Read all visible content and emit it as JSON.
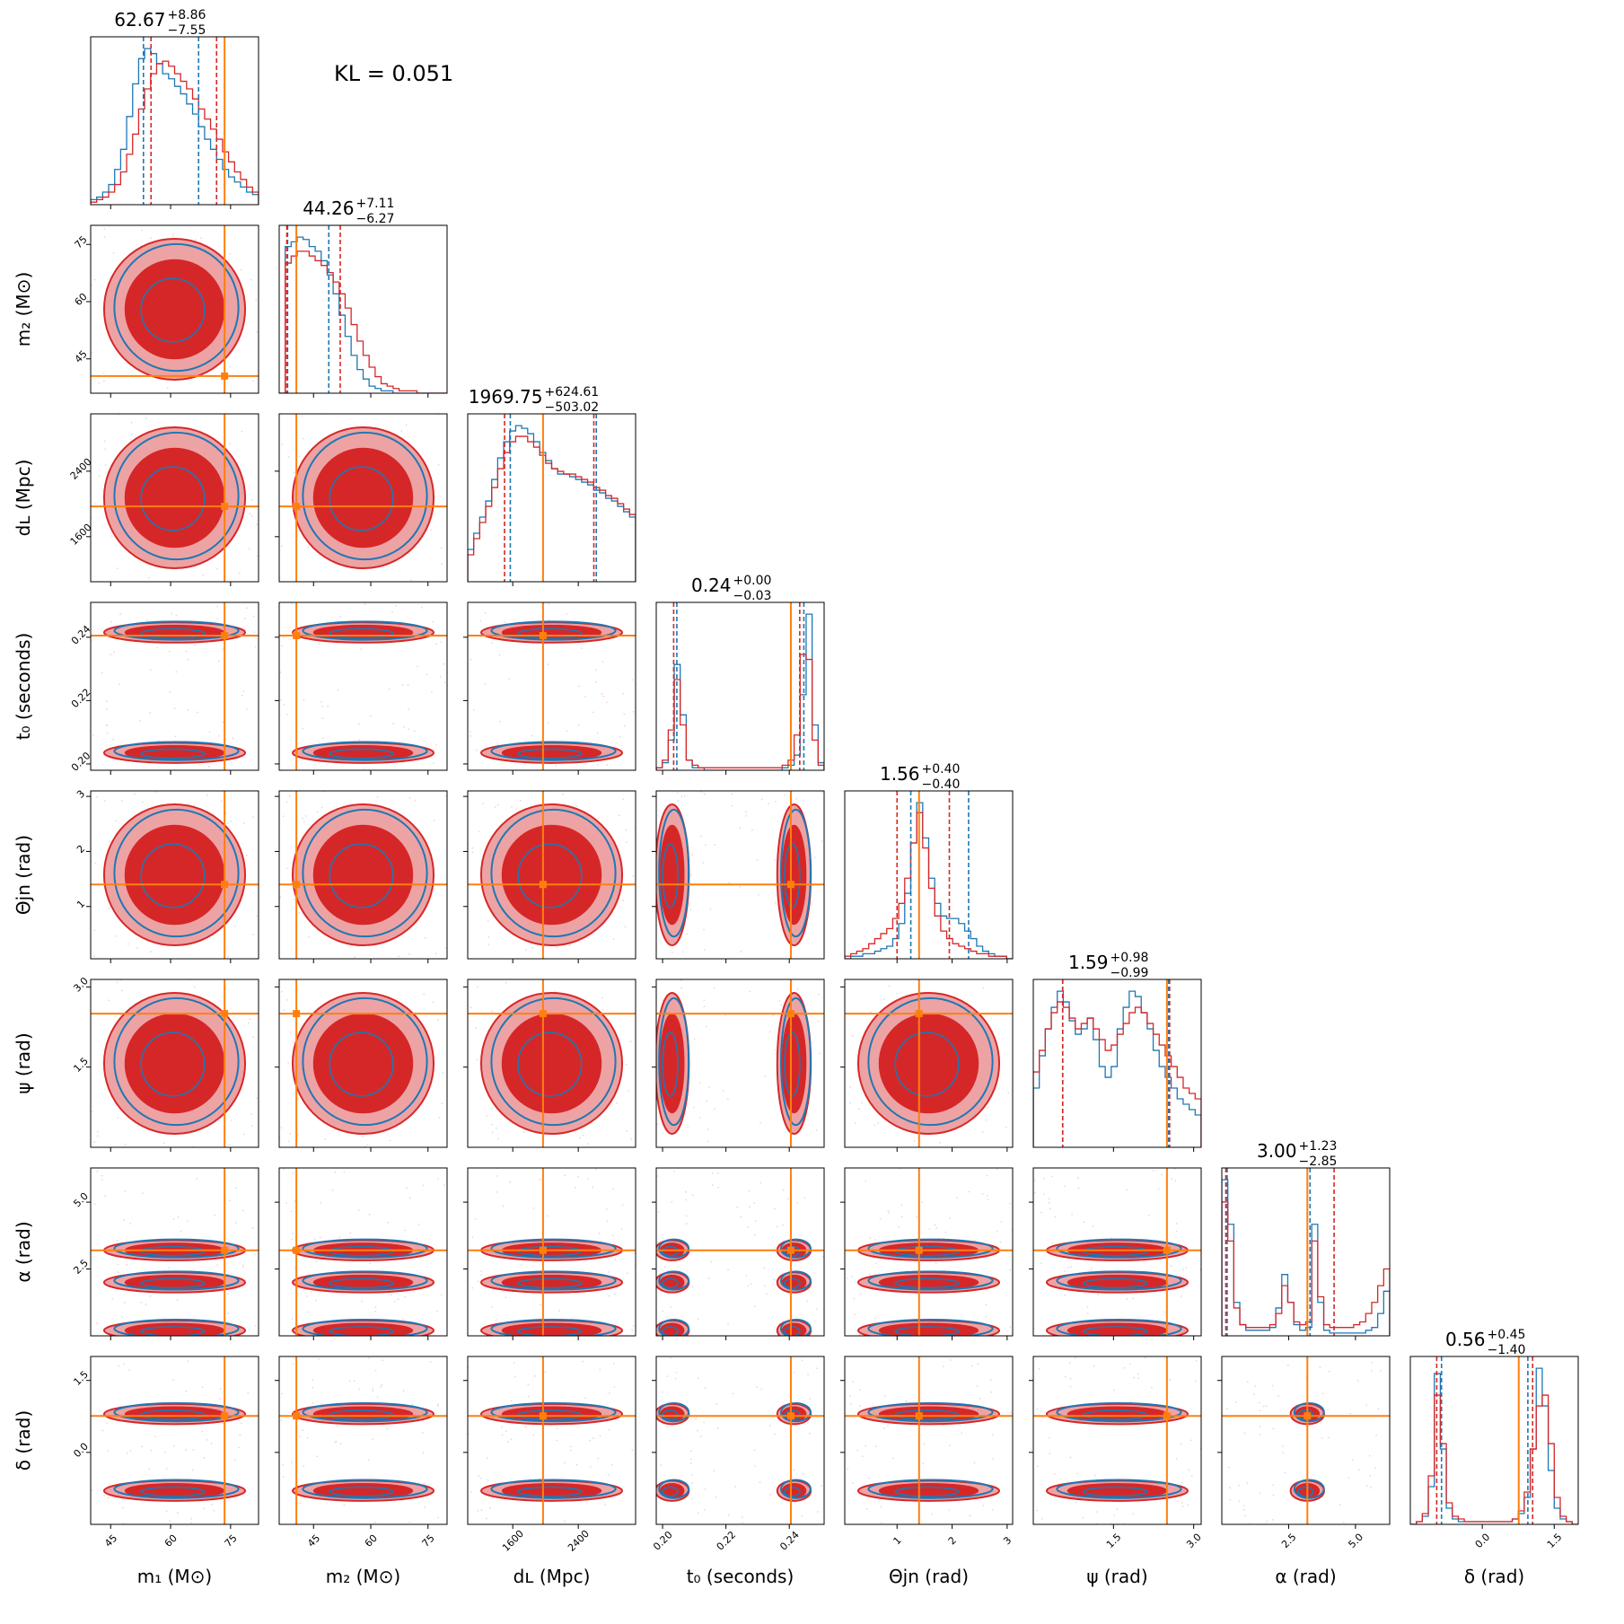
{
  "chart_data": {
    "type": "corner",
    "kl_text": "KL = 0.051",
    "colors": {
      "blue": "#1f77b4",
      "red": "#d62728",
      "red_fill_light": "#eda3a4",
      "orange": "#ff7f0e"
    },
    "parameters": [
      {
        "id": "m1",
        "label": "m₁ (M⊙)",
        "range": [
          40,
          82
        ],
        "ticks": [
          "45",
          "60",
          "75"
        ],
        "tick_values": [
          45,
          60,
          75
        ],
        "truth": 73.5,
        "title_main": "62.67",
        "title_plus": "+8.86",
        "title_minus": "−7.55",
        "quantiles_blue": [
          53.2,
          67.0
        ],
        "quantiles_red": [
          55.1,
          71.5
        ]
      },
      {
        "id": "m2",
        "label": "m₂ (M⊙)",
        "range": [
          36,
          80
        ],
        "ticks": [
          "45",
          "60",
          "75"
        ],
        "tick_values": [
          45,
          60,
          75
        ],
        "truth": 40.5,
        "title_main": "44.26",
        "title_plus": "+7.11",
        "title_minus": "−6.27",
        "quantiles_blue": [
          38.2,
          49.0
        ],
        "quantiles_red": [
          38.0,
          52.0
        ]
      },
      {
        "id": "dL",
        "label": "dʟ (Mpc)",
        "range": [
          1050,
          3100
        ],
        "ticks": [
          "1600",
          "2400"
        ],
        "tick_values": [
          1600,
          2400
        ],
        "truth": 1969.75,
        "title_main": "1969.75",
        "title_plus": "+624.61",
        "title_minus": "−503.02",
        "quantiles_blue": [
          1570,
          2620
        ],
        "quantiles_red": [
          1500,
          2590
        ]
      },
      {
        "id": "t0",
        "label": "t₀ (seconds)",
        "range": [
          0.198,
          0.251
        ],
        "ticks": [
          "0.20",
          "0.22",
          "0.24"
        ],
        "tick_values": [
          0.2,
          0.22,
          0.24
        ],
        "truth": 0.2405,
        "title_main": "0.24",
        "title_plus": "+0.00",
        "title_minus": "−0.03",
        "quantiles_blue": [
          0.2045,
          0.2446
        ],
        "quantiles_red": [
          0.2035,
          0.2433
        ]
      },
      {
        "id": "theta",
        "label": "Θjn (rad)",
        "range": [
          0.05,
          3.1
        ],
        "ticks": [
          "1",
          "2",
          "3"
        ],
        "tick_values": [
          1,
          2,
          3
        ],
        "truth": 1.4,
        "title_main": "1.56",
        "title_plus": "+0.40",
        "title_minus": "−0.40",
        "quantiles_blue": [
          1.25,
          2.3
        ],
        "quantiles_red": [
          1.0,
          1.95
        ]
      },
      {
        "id": "psi",
        "label": "ψ (rad)",
        "range": [
          0,
          3.14
        ],
        "ticks": [
          "1.5",
          "3.0"
        ],
        "tick_values": [
          1.5,
          3.0
        ],
        "truth": 2.5,
        "title_main": "1.59",
        "title_plus": "+0.98",
        "title_minus": "−0.99",
        "quantiles_blue": [
          0.55,
          2.53
        ],
        "quantiles_red": [
          0.55,
          2.55
        ]
      },
      {
        "id": "alpha",
        "label": "α (rad)",
        "range": [
          0,
          6.28
        ],
        "ticks": [
          "2.5",
          "5.0"
        ],
        "tick_values": [
          2.5,
          5.0
        ],
        "truth": 3.2,
        "title_main": "3.00",
        "title_plus": "+1.23",
        "title_minus": "−2.85",
        "quantiles_blue": [
          0.2,
          3.3
        ],
        "quantiles_red": [
          0.15,
          4.2
        ]
      },
      {
        "id": "delta",
        "label": "δ (rad)",
        "range": [
          -1.5,
          2.0
        ],
        "ticks": [
          "0.0",
          "1.5"
        ],
        "tick_values": [
          0.0,
          1.5
        ],
        "truth": 0.76,
        "title_main": "0.56",
        "title_plus": "+0.45",
        "title_minus": "−1.40",
        "quantiles_blue": [
          -0.85,
          0.95
        ],
        "quantiles_red": [
          -0.95,
          1.05
        ]
      }
    ],
    "diagonal_histograms": [
      {
        "param": "m1",
        "blue": [
          2,
          3,
          5,
          8,
          14,
          22,
          35,
          48,
          58,
          62,
          60,
          56,
          52,
          50,
          47,
          44,
          40,
          36,
          31,
          26,
          22,
          18,
          14,
          11,
          9,
          7,
          5,
          4
        ],
        "red": [
          1,
          2,
          3,
          5,
          8,
          13,
          20,
          28,
          38,
          46,
          52,
          56,
          57,
          55,
          52,
          49,
          46,
          42,
          38,
          34,
          30,
          26,
          21,
          17,
          13,
          10,
          7,
          5
        ]
      },
      {
        "param": "m2",
        "blue": [
          0,
          62,
          64,
          66,
          65,
          62,
          60,
          56,
          50,
          42,
          33,
          24,
          16,
          10,
          6,
          3,
          2,
          1,
          1,
          0,
          0,
          0,
          0,
          0,
          0,
          0,
          0,
          0
        ],
        "red": [
          0,
          55,
          58,
          60,
          60,
          58,
          56,
          54,
          51,
          47,
          42,
          36,
          29,
          22,
          16,
          11,
          7,
          4,
          3,
          2,
          1,
          1,
          1,
          0,
          0,
          0,
          0,
          0
        ]
      },
      {
        "param": "dL",
        "blue": [
          12,
          18,
          24,
          30,
          38,
          46,
          52,
          56,
          58,
          57,
          55,
          52,
          48,
          45,
          42,
          40,
          40,
          39,
          38,
          37,
          36,
          34,
          33,
          31,
          30,
          28,
          26,
          24
        ],
        "red": [
          10,
          16,
          22,
          28,
          35,
          42,
          48,
          52,
          54,
          54,
          52,
          50,
          47,
          44,
          42,
          41,
          40,
          40,
          39,
          38,
          37,
          35,
          34,
          32,
          31,
          29,
          27,
          25
        ]
      },
      {
        "param": "t0",
        "blue": [
          1,
          3,
          12,
          42,
          22,
          4,
          1,
          1,
          0,
          0,
          0,
          0,
          0,
          0,
          0,
          0,
          0,
          0,
          0,
          0,
          0,
          1,
          2,
          6,
          30,
          62,
          18,
          3
        ],
        "red": [
          1,
          4,
          16,
          36,
          18,
          4,
          2,
          1,
          1,
          1,
          1,
          1,
          1,
          1,
          1,
          1,
          1,
          1,
          1,
          1,
          1,
          2,
          4,
          14,
          46,
          44,
          12,
          2
        ]
      },
      {
        "param": "theta",
        "blue": [
          0,
          1,
          1,
          2,
          2,
          3,
          4,
          5,
          8,
          14,
          26,
          46,
          62,
          48,
          32,
          22,
          17,
          16,
          16,
          14,
          11,
          8,
          5,
          3,
          2,
          1,
          1,
          0
        ],
        "red": [
          1,
          2,
          3,
          4,
          6,
          8,
          10,
          12,
          16,
          22,
          32,
          46,
          58,
          44,
          28,
          17,
          11,
          8,
          6,
          5,
          4,
          3,
          2,
          2,
          1,
          1,
          1,
          0
        ]
      },
      {
        "param": "psi",
        "blue": [
          22,
          34,
          44,
          52,
          58,
          54,
          47,
          42,
          44,
          48,
          40,
          30,
          26,
          30,
          44,
          52,
          58,
          56,
          50,
          44,
          36,
          30,
          26,
          22,
          18,
          16,
          14,
          12
        ],
        "red": [
          28,
          36,
          44,
          50,
          54,
          52,
          48,
          44,
          46,
          48,
          44,
          40,
          36,
          38,
          42,
          46,
          50,
          52,
          50,
          46,
          42,
          38,
          34,
          30,
          26,
          22,
          20,
          18
        ]
      },
      {
        "param": "alpha",
        "blue": [
          56,
          40,
          12,
          4,
          2,
          2,
          2,
          2,
          3,
          10,
          22,
          12,
          4,
          2,
          3,
          40,
          12,
          2,
          1,
          1,
          1,
          1,
          1,
          1,
          2,
          3,
          8,
          16
        ],
        "red": [
          48,
          34,
          10,
          4,
          3,
          3,
          3,
          3,
          4,
          8,
          18,
          12,
          5,
          4,
          5,
          34,
          14,
          4,
          3,
          3,
          3,
          3,
          4,
          5,
          8,
          12,
          18,
          24
        ]
      },
      {
        "param": "delta",
        "blue": [
          0,
          1,
          3,
          14,
          56,
          28,
          6,
          2,
          1,
          1,
          1,
          1,
          1,
          1,
          1,
          1,
          1,
          2,
          4,
          10,
          28,
          58,
          44,
          20,
          6,
          2,
          1,
          0
        ],
        "red": [
          0,
          1,
          4,
          18,
          48,
          30,
          8,
          3,
          2,
          1,
          1,
          1,
          1,
          1,
          1,
          1,
          1,
          2,
          5,
          12,
          28,
          44,
          48,
          30,
          10,
          3,
          1,
          0
        ]
      }
    ]
  }
}
